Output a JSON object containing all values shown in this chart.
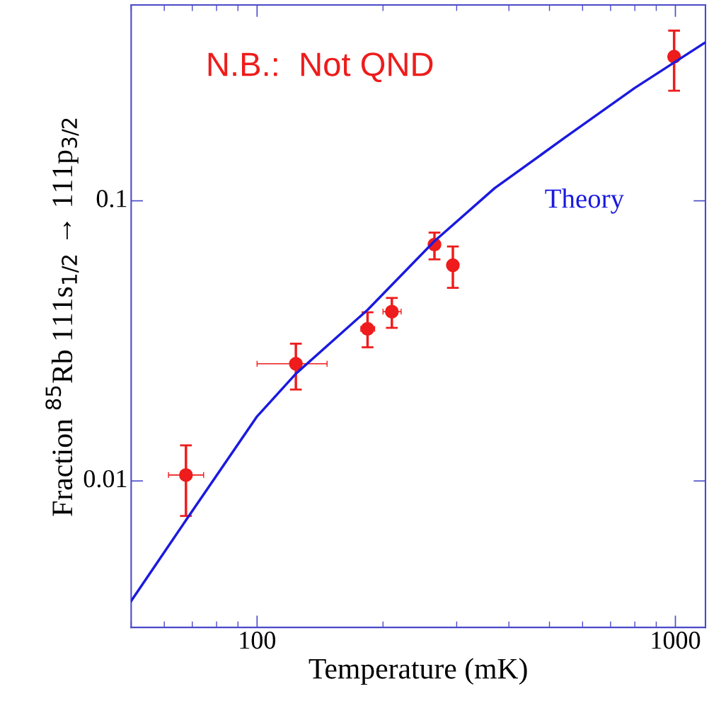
{
  "chart_data": {
    "type": "scatter",
    "xlabel": "Temperature (mK)",
    "ylabel": "Fraction $^{85}$Rb 111s$_{1/2}$ → 111p$_{3/2}$",
    "log": "xy",
    "xlim": [
      50,
      1180
    ],
    "ylim": [
      0.003,
      0.5
    ],
    "xticks": [
      100,
      1000
    ],
    "yticks": [
      0.01,
      0.1
    ],
    "grid": false,
    "legend": false,
    "annotations": [
      "N.B.:  Not QND",
      "Theory"
    ],
    "series": [
      {
        "type": "line",
        "color": "#1a1adf",
        "marker": "none",
        "line_style": "solid",
        "x": [
          50,
          67.6,
          100,
          124,
          184,
          265,
          370,
          544,
          800,
          1180
        ],
        "values": [
          0.00373,
          0.00724,
          0.017,
          0.0242,
          0.0409,
          0.0716,
          0.111,
          0.168,
          0.253,
          0.368
        ]
      },
      {
        "color": "#ee1c1c",
        "marker": "circle",
        "x": [
          67.6,
          123.8,
          183.7,
          210,
          265.5,
          293.8,
          993
        ],
        "values": [
          0.0105,
          0.0262,
          0.0349,
          0.0402,
          0.0698,
          0.0589,
          0.327
        ],
        "errors": [
          [
            0.0075,
            0.0134
          ],
          [
            0.0212,
            0.0309
          ],
          [
            0.03,
            0.04
          ],
          [
            0.0352,
            0.045
          ],
          [
            0.0618,
            0.077
          ],
          [
            0.0489,
            0.0687
          ],
          [
            0.247,
            0.405
          ]
        ],
        "xerrors": [
          [
            61.4,
            74.5
          ],
          [
            100,
            147
          ],
          [
            177,
            191
          ],
          [
            200,
            221
          ],
          null,
          null,
          null
        ]
      }
    ]
  }
}
